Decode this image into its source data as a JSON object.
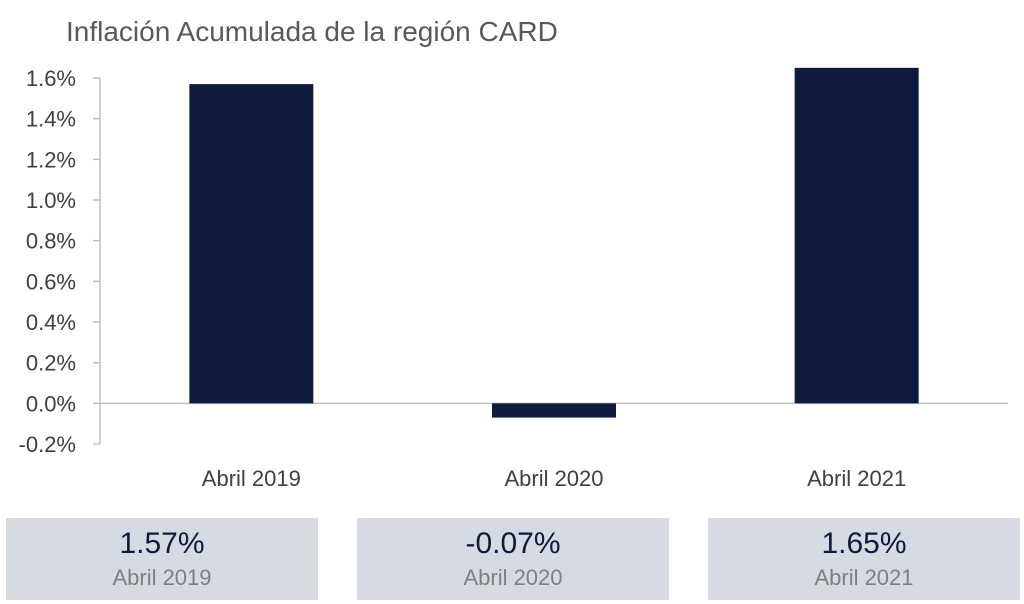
{
  "chart_data": {
    "type": "bar",
    "title": "Inflación Acumulada de la región CARD",
    "categories": [
      "Abril 2019",
      "Abril 2020",
      "Abril 2021"
    ],
    "values": [
      1.57,
      -0.07,
      1.65
    ],
    "ylim": [
      -0.2,
      1.6
    ],
    "yticks": [
      "1.6%",
      "1.4%",
      "1.2%",
      "1.0%",
      "0.8%",
      "0.6%",
      "0.4%",
      "0.2%",
      "0.0%",
      "-0.2%"
    ],
    "bar_color": "#0e1b3d",
    "grid": false
  },
  "cards": [
    {
      "value": "1.57%",
      "label": "Abril 2019"
    },
    {
      "value": "-0.07%",
      "label": "Abril 2020"
    },
    {
      "value": "1.65%",
      "label": "Abril 2021"
    }
  ],
  "colors": {
    "card_bg": "#d6dbe3",
    "value_text": "#0e1b3d",
    "label_text": "#7f7f7f"
  }
}
